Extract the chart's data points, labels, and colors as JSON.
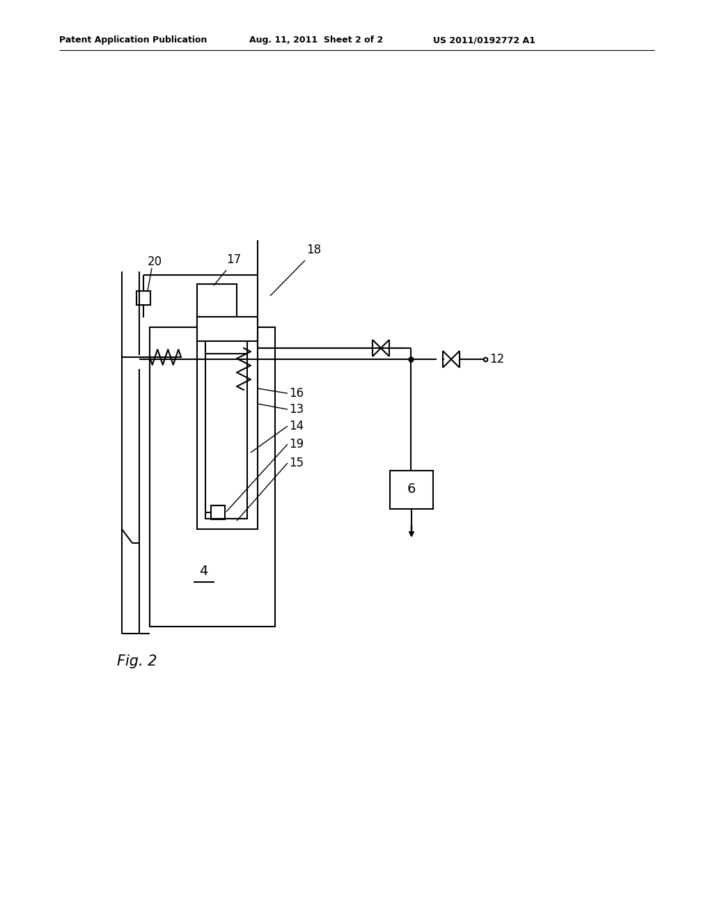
{
  "bg_color": "#ffffff",
  "header_left": "Patent Application Publication",
  "header_mid": "Aug. 11, 2011  Sheet 2 of 2",
  "header_right": "US 2011/0192772 A1",
  "fig_label": "Fig. 2",
  "lw": 1.5
}
